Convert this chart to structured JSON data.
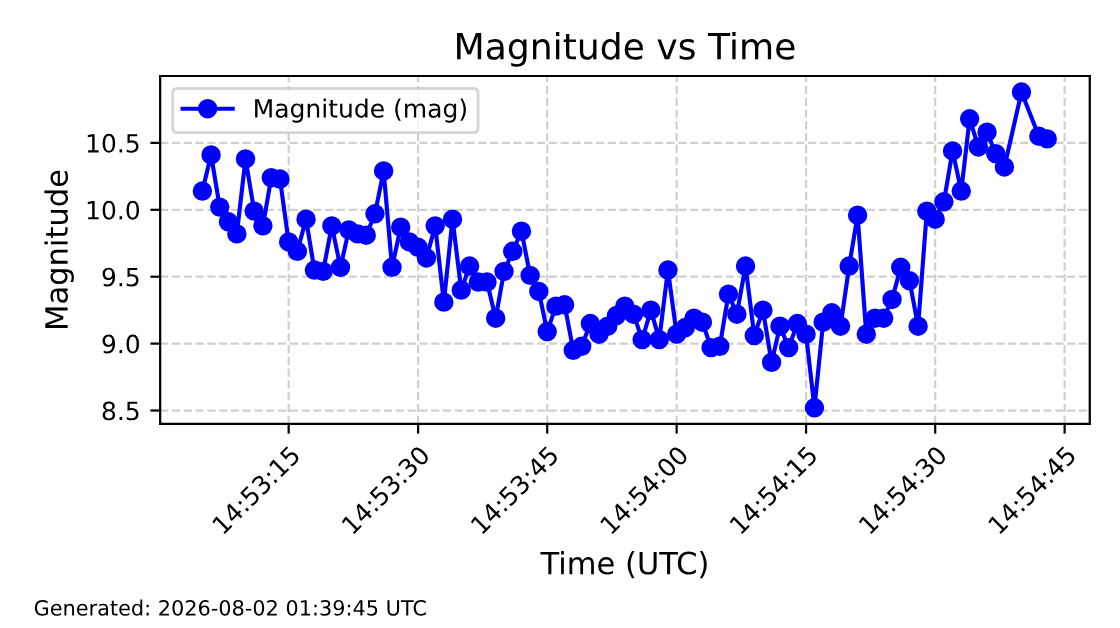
{
  "chart_data": {
    "type": "line",
    "title": "Magnitude vs Time",
    "xlabel": "Time (UTC)",
    "ylabel": "Magnitude",
    "annotations": [
      "Generated: 2026-08-02 01:39:45 UTC"
    ],
    "x": [
      14.88472,
      14.885,
      14.88528,
      14.88556,
      14.88583,
      14.88611,
      14.88639,
      14.88667,
      14.88694,
      14.88722,
      14.8875,
      14.88778,
      14.88806,
      14.88833,
      14.88861,
      14.88889,
      14.88917,
      14.88944,
      14.88972,
      14.89,
      14.89028,
      14.89056,
      14.89083,
      14.89111,
      14.89139,
      14.89167,
      14.89194,
      14.89222,
      14.8925,
      14.89278,
      14.89306,
      14.89333,
      14.89361,
      14.89389,
      14.89417,
      14.89444,
      14.89472,
      14.895,
      14.89528,
      14.89556,
      14.89583,
      14.89611,
      14.89639,
      14.89667,
      14.89694,
      14.89722,
      14.8975,
      14.89778,
      14.89806,
      14.89833,
      14.89861,
      14.89889,
      14.89917,
      14.89944,
      14.89972,
      14.9,
      14.90028,
      14.90056,
      14.90083,
      14.90111,
      14.90139,
      14.90167,
      14.90194,
      14.90222,
      14.9025,
      14.90278,
      14.90306,
      14.90333,
      14.90361,
      14.90389,
      14.90417,
      14.90444,
      14.90472,
      14.905,
      14.90528,
      14.90556,
      14.90583,
      14.90611,
      14.90639,
      14.90667,
      14.90694,
      14.90722,
      14.9075,
      14.90778,
      14.90806,
      14.90833,
      14.90861,
      14.90889,
      14.90917,
      14.90944,
      14.90972,
      14.91,
      14.91028,
      14.91056,
      14.91111,
      14.91167,
      14.91194
    ],
    "series": [
      {
        "name": "Magnitude (mag)",
        "color": "#0000ff",
        "values": [
          10.14,
          10.41,
          10.02,
          9.91,
          9.82,
          10.38,
          9.99,
          9.88,
          10.24,
          10.23,
          9.76,
          9.69,
          9.93,
          9.55,
          9.54,
          9.88,
          9.57,
          9.85,
          9.82,
          9.81,
          9.97,
          10.29,
          9.57,
          9.87,
          9.76,
          9.72,
          9.64,
          9.88,
          9.31,
          9.93,
          9.4,
          9.58,
          9.46,
          9.46,
          9.19,
          9.54,
          9.69,
          9.84,
          9.51,
          9.39,
          9.09,
          9.28,
          9.29,
          8.95,
          8.98,
          9.15,
          9.07,
          9.13,
          9.21,
          9.28,
          9.22,
          9.03,
          9.25,
          9.03,
          9.55,
          9.07,
          9.12,
          9.19,
          9.16,
          8.97,
          8.98,
          9.37,
          9.22,
          9.58,
          9.06,
          9.25,
          8.86,
          9.13,
          8.97,
          9.15,
          9.07,
          8.52,
          9.16,
          9.23,
          9.13,
          9.58,
          9.96,
          9.07,
          9.19,
          9.19,
          9.33,
          9.57,
          9.47,
          9.13,
          9.99,
          9.93,
          10.06,
          10.44,
          10.14,
          10.68,
          10.47,
          10.58,
          10.42,
          10.32,
          10.88,
          10.55,
          10.53
        ]
      }
    ],
    "xlim": [
      14.88336,
      14.91331
    ],
    "xticks": [
      {
        "value": 14.8875,
        "label": "14:53:15"
      },
      {
        "value": 14.89167,
        "label": "14:53:30"
      },
      {
        "value": 14.89583,
        "label": "14:53:45"
      },
      {
        "value": 14.9,
        "label": "14:54:00"
      },
      {
        "value": 14.90417,
        "label": "14:54:15"
      },
      {
        "value": 14.90833,
        "label": "14:54:30"
      },
      {
        "value": 14.9125,
        "label": "14:54:45"
      }
    ],
    "ylim": [
      8.4,
      11.0
    ],
    "yticks": [
      8.5,
      {
        "value": 9,
        "label": "9.0"
      },
      9.5,
      {
        "value": 10,
        "label": "10.0"
      },
      10.5
    ],
    "grid": true,
    "legend": "top left",
    "marker": "circle",
    "line_style": "solid"
  }
}
